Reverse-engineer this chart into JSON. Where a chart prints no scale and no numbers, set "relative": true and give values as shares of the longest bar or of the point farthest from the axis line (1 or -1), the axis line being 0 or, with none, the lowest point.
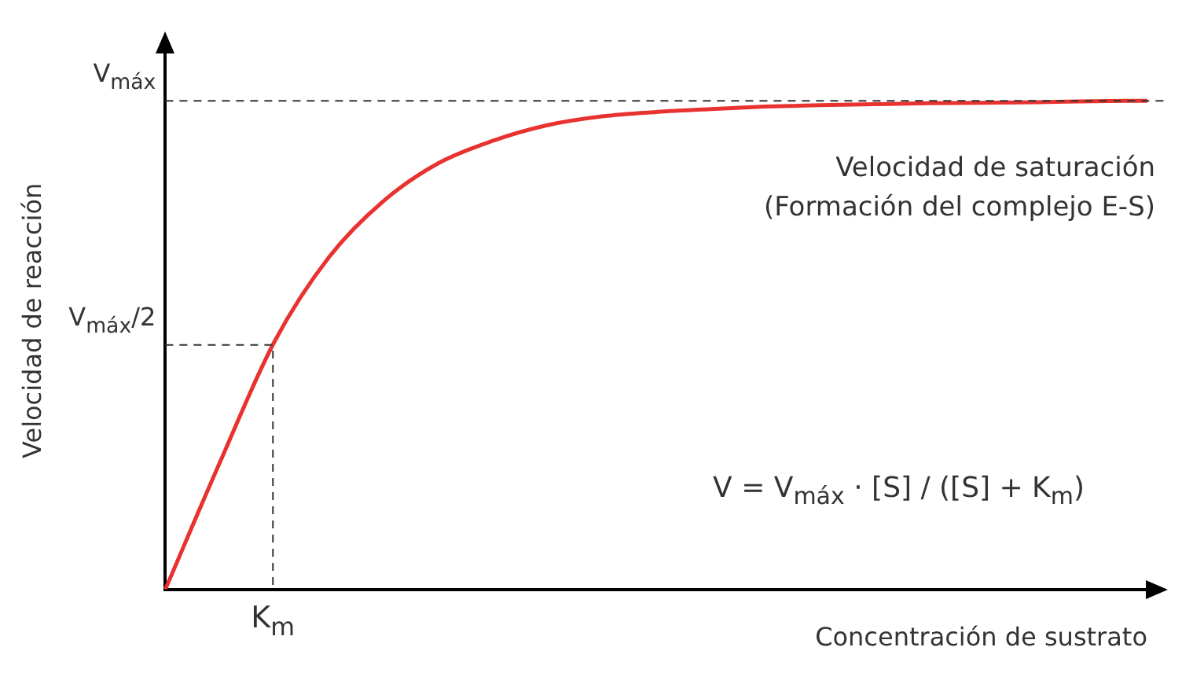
{
  "chart_data": {
    "type": "line",
    "relative": true,
    "xlabel": "Concentración de sustrato",
    "ylabel": "Velocidad de reacción",
    "categories": [
      null,
      null,
      null,
      null,
      null,
      null,
      null,
      null,
      null,
      null,
      null,
      null,
      null,
      null,
      null,
      null,
      null,
      null,
      null
    ],
    "values": [
      0,
      0.26,
      0.507,
      0.68,
      0.795,
      0.872,
      0.918,
      0.95,
      0.968,
      0.977,
      0.983,
      0.988,
      0.991,
      0.993,
      0.995,
      0.996,
      0.997,
      0.999,
      1
    ],
    "color": "#e8322f",
    "marker": "none",
    "line_style": "solid",
    "grid": false,
    "legend": false,
    "ref_lines": [
      {
        "axis": "y",
        "value": 1,
        "label": "V$_{máx}$",
        "line_style": "dashed"
      },
      {
        "axis": "y",
        "value": 0.5,
        "label": "V$_{máx}$/2",
        "line_style": "dashed"
      }
    ],
    "annotations": [
      "Velocidad de saturación",
      "(Formación del complejo E-S)",
      "V = V$_{máx}$ · [S] / ([S] + K$_{m}$)",
      "K$_{m}$"
    ]
  }
}
